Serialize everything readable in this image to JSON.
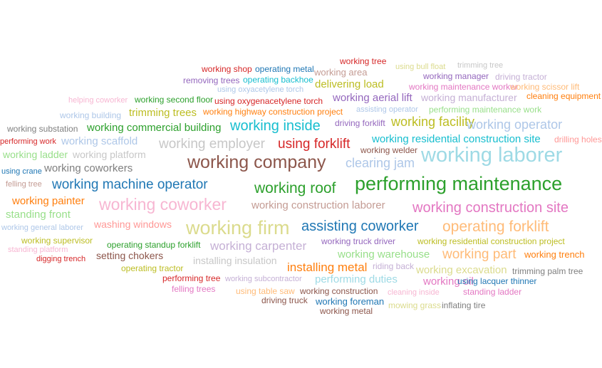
{
  "words": [
    {
      "text": "working tree",
      "color": "#d62728"
    },
    {
      "text": "using bull float",
      "color": "#dbdb8d"
    },
    {
      "text": "trimming tree",
      "color": "#c7c7c7"
    },
    {
      "text": "working shop",
      "color": "#d62728"
    },
    {
      "text": "operating metal",
      "color": "#1f77b4"
    },
    {
      "text": "working area",
      "color": "#c49c94"
    },
    {
      "text": "working manager",
      "color": "#9467bd"
    },
    {
      "text": "driving tractor",
      "color": "#c5b0d5"
    },
    {
      "text": "removing trees",
      "color": "#9467bd"
    },
    {
      "text": "operating backhoe",
      "color": "#17becf"
    },
    {
      "text": "delivering load",
      "color": "#bcbd22"
    },
    {
      "text": "working maintenance worker",
      "color": "#e377c2"
    },
    {
      "text": "working scissor lift",
      "color": "#ffbb78"
    },
    {
      "text": "using oxyacetylene torch",
      "color": "#aec7e8"
    },
    {
      "text": "helping coworker",
      "color": "#f7b6d2"
    },
    {
      "text": "working second floor",
      "color": "#2ca02c"
    },
    {
      "text": "using oxygenacetylene torch",
      "color": "#d62728"
    },
    {
      "text": "working aerial lift",
      "color": "#9467bd"
    },
    {
      "text": "working manufacturer",
      "color": "#c5b0d5"
    },
    {
      "text": "cleaning equipment",
      "color": "#ff7f0e"
    },
    {
      "text": "working building",
      "color": "#aec7e8"
    },
    {
      "text": "trimming trees",
      "color": "#bcbd22"
    },
    {
      "text": "working highway construction project",
      "color": "#ff7f0e"
    },
    {
      "text": "assisting operator",
      "color": "#aec7e8"
    },
    {
      "text": "performing maintenance work",
      "color": "#98df8a"
    },
    {
      "text": "working substation",
      "color": "#7f7f7f"
    },
    {
      "text": "working commercial building",
      "color": "#2ca02c"
    },
    {
      "text": "working inside",
      "color": "#17becf"
    },
    {
      "text": "driving forklift",
      "color": "#9467bd"
    },
    {
      "text": "working facility",
      "color": "#bcbd22"
    },
    {
      "text": "working operator",
      "color": "#aec7e8"
    },
    {
      "text": "performing work",
      "color": "#d62728"
    },
    {
      "text": "working scaffold",
      "color": "#aec7e8"
    },
    {
      "text": "working employer",
      "color": "#c7c7c7"
    },
    {
      "text": "using forklift",
      "color": "#d62728"
    },
    {
      "text": "working residential construction site",
      "color": "#17becf"
    },
    {
      "text": "drilling holes",
      "color": "#ff9896"
    },
    {
      "text": "working ladder",
      "color": "#98df8a"
    },
    {
      "text": "working platform",
      "color": "#c7c7c7"
    },
    {
      "text": "working welder",
      "color": "#8c564b"
    },
    {
      "text": "working laborer",
      "color": "#9edae5"
    },
    {
      "text": "working company",
      "color": "#8c564b"
    },
    {
      "text": "clearing jam",
      "color": "#aec7e8"
    },
    {
      "text": "using crane",
      "color": "#1f77b4"
    },
    {
      "text": "working coworkers",
      "color": "#7f7f7f"
    },
    {
      "text": "felling tree",
      "color": "#c49c94"
    },
    {
      "text": "working machine operator",
      "color": "#1f77b4"
    },
    {
      "text": "working roof",
      "color": "#2ca02c"
    },
    {
      "text": "performing maintenance",
      "color": "#2ca02c"
    },
    {
      "text": "working painter",
      "color": "#ff7f0e"
    },
    {
      "text": "working coworker",
      "color": "#f7b6d2"
    },
    {
      "text": "working construction laborer",
      "color": "#c49c94"
    },
    {
      "text": "working construction site",
      "color": "#e377c2"
    },
    {
      "text": "standing front",
      "color": "#98df8a"
    },
    {
      "text": "working general laborer",
      "color": "#aec7e8"
    },
    {
      "text": "washing windows",
      "color": "#ff9896"
    },
    {
      "text": "working firm",
      "color": "#dbdb8d"
    },
    {
      "text": "assisting coworker",
      "color": "#1f77b4"
    },
    {
      "text": "operating forklift",
      "color": "#ffbb78"
    },
    {
      "text": "working supervisor",
      "color": "#bcbd22"
    },
    {
      "text": "operating standup forklift",
      "color": "#2ca02c"
    },
    {
      "text": "working carpenter",
      "color": "#c5b0d5"
    },
    {
      "text": "working truck driver",
      "color": "#9467bd"
    },
    {
      "text": "working residential construction project",
      "color": "#bcbd22"
    },
    {
      "text": "standing platform",
      "color": "#f7b6d2"
    },
    {
      "text": "setting chokers",
      "color": "#8c564b"
    },
    {
      "text": "working warehouse",
      "color": "#98df8a"
    },
    {
      "text": "working part",
      "color": "#ffbb78"
    },
    {
      "text": "working trench",
      "color": "#ff7f0e"
    },
    {
      "text": "digging trench",
      "color": "#d62728"
    },
    {
      "text": "installing insulation",
      "color": "#c7c7c7"
    },
    {
      "text": "operating tractor",
      "color": "#bcbd22"
    },
    {
      "text": "installing metal",
      "color": "#ff7f0e"
    },
    {
      "text": "riding back",
      "color": "#c5b0d5"
    },
    {
      "text": "working excavation",
      "color": "#dbdb8d"
    },
    {
      "text": "trimming palm tree",
      "color": "#7f7f7f"
    },
    {
      "text": "performing tree",
      "color": "#d62728"
    },
    {
      "text": "working subcontractor",
      "color": "#c5b0d5"
    },
    {
      "text": "performing duties",
      "color": "#9edae5"
    },
    {
      "text": "working oil",
      "color": "#e377c2"
    },
    {
      "text": "using lacquer thinner",
      "color": "#1f77b4"
    },
    {
      "text": "felling trees",
      "color": "#e377c2"
    },
    {
      "text": "using table saw",
      "color": "#ffbb78"
    },
    {
      "text": "working construction",
      "color": "#8c564b"
    },
    {
      "text": "cleaning inside",
      "color": "#f7b6d2"
    },
    {
      "text": "standing ladder",
      "color": "#e377c2"
    },
    {
      "text": "driving truck",
      "color": "#8c564b"
    },
    {
      "text": "working foreman",
      "color": "#1f77b4"
    },
    {
      "text": "mowing grass",
      "color": "#dbdb8d"
    },
    {
      "text": "inflating tire",
      "color": "#7f7f7f"
    },
    {
      "text": "working metal",
      "color": "#8c564b"
    }
  ]
}
